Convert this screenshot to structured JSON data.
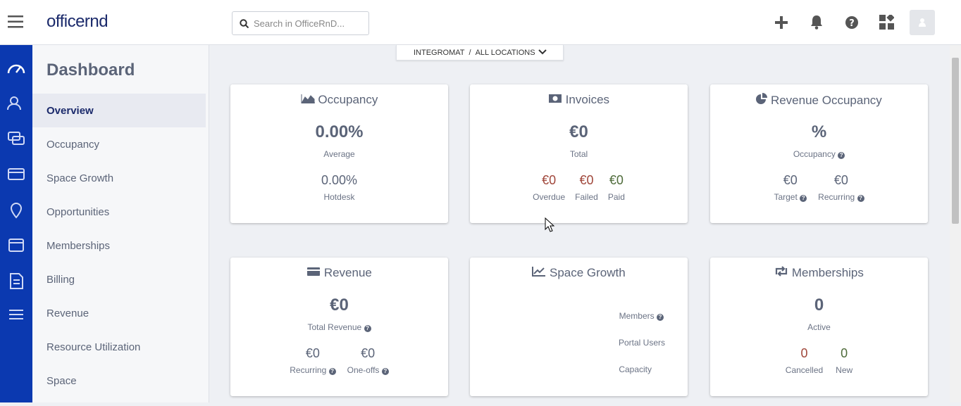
{
  "header": {
    "brand": "officernd",
    "search_placeholder": "Search in OfficeRnD..."
  },
  "sidebar": {
    "title": "Dashboard",
    "items": [
      "Overview",
      "Occupancy",
      "Space Growth",
      "Opportunities",
      "Memberships",
      "Billing",
      "Revenue",
      "Resource Utilization",
      "Space"
    ]
  },
  "location_selector": {
    "org": "INTEGROMAT",
    "separator": "/",
    "location": "ALL LOCATIONS"
  },
  "cards": [
    {
      "title": "Occupancy",
      "main": {
        "value": "0.00%",
        "label": "Average"
      },
      "stats": [
        {
          "value": "0.00%",
          "label": "Hotdesk"
        }
      ]
    },
    {
      "title": "Invoices",
      "main": {
        "value": "€0",
        "label": "Total"
      },
      "stats": [
        {
          "value": "€0",
          "label": "Overdue"
        },
        {
          "value": "€0",
          "label": "Failed"
        },
        {
          "value": "€0",
          "label": "Paid"
        }
      ]
    },
    {
      "title": "Revenue Occupancy",
      "main": {
        "value": "%",
        "label": "Occupancy"
      },
      "stats": [
        {
          "value": "€0",
          "label": "Target"
        },
        {
          "value": "€0",
          "label": "Recurring"
        }
      ]
    },
    {
      "title": "Revenue",
      "main": {
        "value": "€0",
        "label": "Total Revenue"
      },
      "stats": [
        {
          "value": "€0",
          "label": "Recurring"
        },
        {
          "value": "€0",
          "label": "One-offs"
        }
      ]
    },
    {
      "title": "Space Growth",
      "legend": [
        "Members",
        "Portal Users",
        "Capacity"
      ]
    },
    {
      "title": "Memberships",
      "main": {
        "value": "0",
        "label": "Active"
      },
      "stats": [
        {
          "value": "0",
          "label": "Cancelled"
        },
        {
          "value": "0",
          "label": "New"
        }
      ]
    }
  ]
}
